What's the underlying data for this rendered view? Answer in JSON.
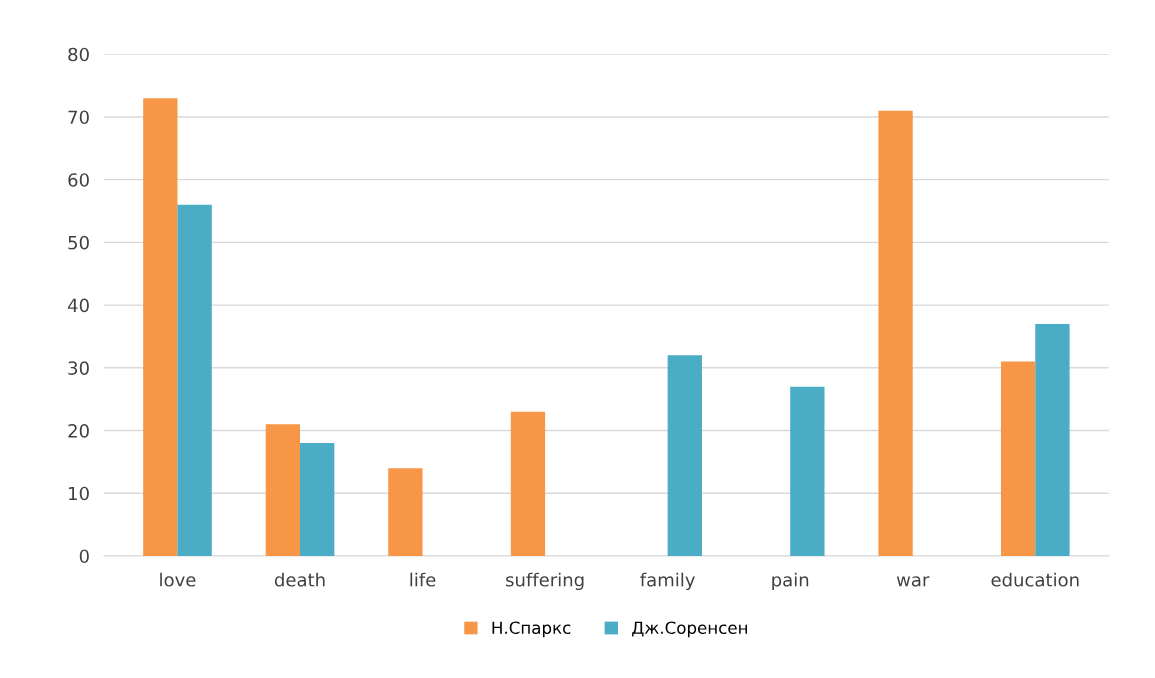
{
  "chart_data": {
    "type": "bar",
    "categories": [
      "love",
      "death",
      "life",
      "suffering",
      "family",
      "pain",
      "war",
      "education"
    ],
    "series": [
      {
        "name": "Н.Спаркс",
        "color": "#f79646",
        "values": [
          73,
          21,
          14,
          23,
          0,
          0,
          71,
          31
        ]
      },
      {
        "name": "Дж.Соренсен",
        "color": "#4bacc6",
        "values": [
          56,
          18,
          0,
          0,
          32,
          27,
          0,
          37
        ]
      }
    ],
    "ylim": [
      0,
      80
    ],
    "yticks": [
      0,
      10,
      20,
      30,
      40,
      50,
      60,
      70,
      80
    ],
    "grid": "y",
    "legend": "bottom"
  }
}
